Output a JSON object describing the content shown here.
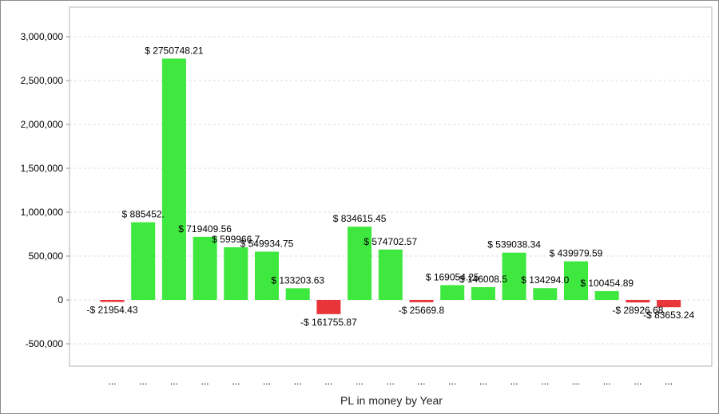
{
  "chart_data": {
    "type": "bar",
    "title": "",
    "xlabel": "PL in money by Year",
    "ylabel": "",
    "ylim": [
      -750000,
      3200000
    ],
    "yticks": [
      3000000,
      2500000,
      2000000,
      1500000,
      1000000,
      500000,
      0,
      -500000
    ],
    "ytick_labels": [
      "3,000,000",
      "2,500,000",
      "2,000,000",
      "1,500,000",
      "1,000,000",
      "500,000",
      "0",
      "-500,000"
    ],
    "grid": true,
    "positive_color": "#3ee83e",
    "negative_color": "#e8353a",
    "categories": [
      "...",
      "...",
      "...",
      "...",
      "...",
      "...",
      "...",
      "...",
      "...",
      "...",
      "...",
      "...",
      "...",
      "...",
      "...",
      "...",
      "...",
      "...",
      "..."
    ],
    "values": [
      -21954.43,
      885452,
      2750748.21,
      719409.56,
      599966.7,
      549934.75,
      133203.63,
      -161755.87,
      834615.45,
      574702.57,
      -25669.8,
      169054.25,
      146008.5,
      539038.34,
      134294,
      439979.59,
      100454.89,
      -28926.68,
      -83653.24
    ],
    "data_labels": [
      "-$ 21954.43",
      "$ 885452.",
      "$ 2750748.21",
      "$ 719409.56",
      "$ 599966.7",
      "$ 549934.75",
      "$ 133203.63",
      "-$ 161755.87",
      "$ 834615.45",
      "$ 574702.57",
      "-$ 25669.8",
      "$ 169054.25",
      "$ 146008.5",
      "$ 539038.34",
      "$ 134294.0",
      "$ 439979.59",
      "$ 100454.89",
      "-$ 28926.68",
      "-$ 83653.24"
    ]
  }
}
